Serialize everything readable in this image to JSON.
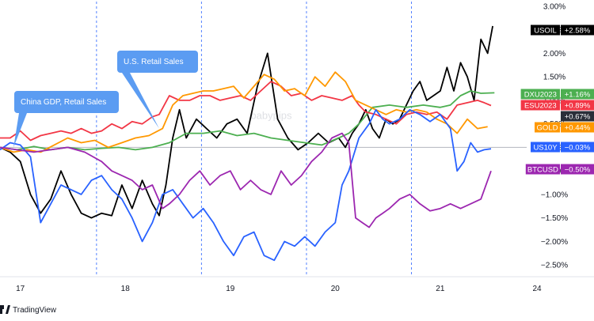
{
  "chart_data": {
    "type": "line",
    "y_axis": {
      "unit": "%",
      "range": [
        -2.75,
        3.1
      ],
      "ticks": [
        "3.00%",
        "2.50%",
        "2.00%",
        "1.50%",
        "1.00%",
        "0.50%",
        "0.00%",
        "−0.50%",
        "−1.00%",
        "−1.50%",
        "−2.00%",
        "−2.50%"
      ],
      "tick_values": [
        3.0,
        2.5,
        2.0,
        1.5,
        1.0,
        0.5,
        0.0,
        -0.5,
        -1.0,
        -1.5,
        -2.0,
        -2.5
      ]
    },
    "x_axis": {
      "range": [
        0,
        145
      ],
      "ticks": [
        {
          "label": "17",
          "x": 6
        },
        {
          "label": "18",
          "x": 37
        },
        {
          "label": "19",
          "x": 68
        },
        {
          "label": "20",
          "x": 99
        },
        {
          "label": "21",
          "x": 130
        },
        {
          "label": "24",
          "x": 161
        }
      ],
      "session_lines": [
        28.5,
        59.5,
        90.5,
        121.5
      ]
    },
    "grid": false,
    "watermark": "babypips",
    "annotations": [
      {
        "text": "China GDP, Retail Sales",
        "x": 4,
        "y": 0
      },
      {
        "text": "U.S. Retail Sales",
        "x": 47,
        "y": 0.4
      }
    ],
    "series": [
      {
        "name": "USOIL",
        "value_label": "+2.58%",
        "color": "#000000",
        "points": [
          [
            0,
            0
          ],
          [
            3,
            -0.1
          ],
          [
            6,
            -0.3
          ],
          [
            9,
            -1.0
          ],
          [
            12,
            -1.4
          ],
          [
            15,
            -1.1
          ],
          [
            18,
            -0.5
          ],
          [
            21,
            -1.0
          ],
          [
            24,
            -1.4
          ],
          [
            27,
            -1.5
          ],
          [
            30,
            -1.4
          ],
          [
            33,
            -1.45
          ],
          [
            36,
            -0.8
          ],
          [
            39,
            -1.3
          ],
          [
            42,
            -0.7
          ],
          [
            45,
            -1.2
          ],
          [
            47,
            -1.45
          ],
          [
            49,
            -0.8
          ],
          [
            51,
            0.2
          ],
          [
            53,
            0.8
          ],
          [
            55,
            0.2
          ],
          [
            58,
            0.6
          ],
          [
            61,
            0.4
          ],
          [
            64,
            0.2
          ],
          [
            67,
            0.5
          ],
          [
            70,
            0.6
          ],
          [
            73,
            0.3
          ],
          [
            76,
            1.3
          ],
          [
            79,
            2.0
          ],
          [
            82,
            0.6
          ],
          [
            85,
            0.2
          ],
          [
            88,
            -0.05
          ],
          [
            91,
            0.1
          ],
          [
            94,
            0.3
          ],
          [
            97,
            0.1
          ],
          [
            100,
            0.2
          ],
          [
            102,
            0.0
          ],
          [
            104,
            0.3
          ],
          [
            106,
            0.5
          ],
          [
            108,
            0.8
          ],
          [
            110,
            0.4
          ],
          [
            112,
            0.2
          ],
          [
            114,
            0.6
          ],
          [
            116,
            0.5
          ],
          [
            118,
            0.6
          ],
          [
            120,
            0.9
          ],
          [
            122,
            1.2
          ],
          [
            124,
            1.4
          ],
          [
            126,
            1.0
          ],
          [
            128,
            1.1
          ],
          [
            130,
            1.2
          ],
          [
            132,
            1.7
          ],
          [
            134,
            1.2
          ],
          [
            136,
            1.8
          ],
          [
            138,
            1.5
          ],
          [
            140,
            1.0
          ],
          [
            142,
            2.3
          ],
          [
            144,
            2.0
          ],
          [
            145.5,
            2.58
          ]
        ]
      },
      {
        "name": "DXU2023",
        "value_label": "+1.16%",
        "color": "#4caf50",
        "points": [
          [
            0,
            0.0
          ],
          [
            5,
            -0.05
          ],
          [
            10,
            0.02
          ],
          [
            15,
            -0.05
          ],
          [
            20,
            0.0
          ],
          [
            25,
            -0.05
          ],
          [
            30,
            -0.02
          ],
          [
            35,
            0.0
          ],
          [
            40,
            -0.05
          ],
          [
            45,
            0.0
          ],
          [
            50,
            0.1
          ],
          [
            55,
            0.3
          ],
          [
            60,
            0.3
          ],
          [
            65,
            0.35
          ],
          [
            70,
            0.25
          ],
          [
            75,
            0.3
          ],
          [
            80,
            0.2
          ],
          [
            85,
            0.15
          ],
          [
            90,
            0.1
          ],
          [
            95,
            0.05
          ],
          [
            100,
            0.2
          ],
          [
            103,
            0.3
          ],
          [
            106,
            0.5
          ],
          [
            110,
            0.85
          ],
          [
            115,
            0.9
          ],
          [
            120,
            0.85
          ],
          [
            125,
            0.9
          ],
          [
            130,
            0.85
          ],
          [
            133,
            0.9
          ],
          [
            136,
            1.1
          ],
          [
            139,
            1.2
          ],
          [
            142,
            1.15
          ],
          [
            146,
            1.16
          ]
        ]
      },
      {
        "name": "ESU2023",
        "value_label": "+0.89%",
        "color": "#f23645",
        "points": [
          [
            0,
            0.2
          ],
          [
            3,
            0.2
          ],
          [
            6,
            0.35
          ],
          [
            9,
            0.15
          ],
          [
            12,
            0.25
          ],
          [
            15,
            0.3
          ],
          [
            18,
            0.35
          ],
          [
            21,
            0.3
          ],
          [
            24,
            0.4
          ],
          [
            27,
            0.3
          ],
          [
            30,
            0.35
          ],
          [
            33,
            0.5
          ],
          [
            36,
            0.4
          ],
          [
            39,
            0.55
          ],
          [
            42,
            0.5
          ],
          [
            45,
            0.65
          ],
          [
            47,
            0.7
          ],
          [
            50,
            1.1
          ],
          [
            53,
            1.0
          ],
          [
            56,
            1.0
          ],
          [
            59,
            1.1
          ],
          [
            62,
            1.1
          ],
          [
            65,
            1.0
          ],
          [
            68,
            1.05
          ],
          [
            71,
            1.1
          ],
          [
            74,
            1.0
          ],
          [
            77,
            1.2
          ],
          [
            80,
            1.4
          ],
          [
            83,
            1.3
          ],
          [
            86,
            1.1
          ],
          [
            89,
            1.15
          ],
          [
            92,
            1.0
          ],
          [
            95,
            1.1
          ],
          [
            98,
            1.05
          ],
          [
            101,
            1.0
          ],
          [
            104,
            1.1
          ],
          [
            106,
            0.9
          ],
          [
            108,
            0.75
          ],
          [
            111,
            0.7
          ],
          [
            114,
            0.6
          ],
          [
            117,
            0.5
          ],
          [
            120,
            0.7
          ],
          [
            123,
            0.75
          ],
          [
            126,
            0.7
          ],
          [
            129,
            0.75
          ],
          [
            132,
            0.6
          ],
          [
            135,
            0.9
          ],
          [
            138,
            0.95
          ],
          [
            141,
            1.0
          ],
          [
            143,
            0.95
          ],
          [
            145,
            0.89
          ]
        ]
      },
      {
        "name": "",
        "value_label": "+0.67%",
        "color": "#2a2e39",
        "tag_only": true,
        "points": [
          [
            146,
            0.67
          ]
        ]
      },
      {
        "name": "GOLD",
        "value_label": "+0.44%",
        "color": "#ff9800",
        "points": [
          [
            0,
            0
          ],
          [
            4,
            -0.1
          ],
          [
            8,
            -0.05
          ],
          [
            12,
            -0.1
          ],
          [
            16,
            0.05
          ],
          [
            20,
            0.2
          ],
          [
            24,
            0.1
          ],
          [
            28,
            0.15
          ],
          [
            32,
            0.0
          ],
          [
            36,
            0.1
          ],
          [
            40,
            0.2
          ],
          [
            44,
            0.25
          ],
          [
            48,
            0.4
          ],
          [
            51,
            0.9
          ],
          [
            54,
            1.1
          ],
          [
            57,
            1.15
          ],
          [
            60,
            1.2
          ],
          [
            63,
            1.2
          ],
          [
            66,
            1.25
          ],
          [
            69,
            1.3
          ],
          [
            72,
            1.05
          ],
          [
            75,
            1.3
          ],
          [
            78,
            1.55
          ],
          [
            81,
            1.45
          ],
          [
            84,
            1.2
          ],
          [
            87,
            1.25
          ],
          [
            90,
            1.1
          ],
          [
            93,
            1.5
          ],
          [
            96,
            1.3
          ],
          [
            99,
            1.6
          ],
          [
            102,
            1.4
          ],
          [
            105,
            1.0
          ],
          [
            108,
            0.9
          ],
          [
            111,
            0.8
          ],
          [
            114,
            0.7
          ],
          [
            117,
            0.8
          ],
          [
            120,
            0.75
          ],
          [
            123,
            0.8
          ],
          [
            126,
            0.75
          ],
          [
            129,
            0.6
          ],
          [
            132,
            0.5
          ],
          [
            135,
            0.3
          ],
          [
            138,
            0.6
          ],
          [
            141,
            0.4
          ],
          [
            144,
            0.44
          ]
        ]
      },
      {
        "name": "US10Y",
        "value_label": "−0.03%",
        "color": "#2962ff",
        "points": [
          [
            0,
            -0.05
          ],
          [
            3,
            0.1
          ],
          [
            6,
            0.05
          ],
          [
            9,
            -0.2
          ],
          [
            12,
            -1.6
          ],
          [
            15,
            -1.2
          ],
          [
            18,
            -0.8
          ],
          [
            21,
            -0.9
          ],
          [
            24,
            -1.0
          ],
          [
            27,
            -0.7
          ],
          [
            30,
            -0.6
          ],
          [
            33,
            -0.9
          ],
          [
            36,
            -1.1
          ],
          [
            39,
            -1.5
          ],
          [
            42,
            -2.0
          ],
          [
            45,
            -1.6
          ],
          [
            48,
            -1.0
          ],
          [
            51,
            -0.9
          ],
          [
            54,
            -1.2
          ],
          [
            57,
            -1.5
          ],
          [
            60,
            -1.3
          ],
          [
            63,
            -1.6
          ],
          [
            66,
            -2.0
          ],
          [
            69,
            -2.3
          ],
          [
            72,
            -1.9
          ],
          [
            75,
            -1.8
          ],
          [
            78,
            -2.3
          ],
          [
            81,
            -2.4
          ],
          [
            84,
            -2.0
          ],
          [
            87,
            -2.1
          ],
          [
            90,
            -1.9
          ],
          [
            93,
            -2.1
          ],
          [
            96,
            -1.8
          ],
          [
            99,
            -1.6
          ],
          [
            101,
            -0.8
          ],
          [
            103,
            -0.5
          ],
          [
            106,
            0.2
          ],
          [
            109,
            0.5
          ],
          [
            111,
            0.8
          ],
          [
            113,
            0.6
          ],
          [
            115,
            0.5
          ],
          [
            118,
            0.6
          ],
          [
            121,
            0.8
          ],
          [
            124,
            0.7
          ],
          [
            127,
            0.55
          ],
          [
            130,
            0.7
          ],
          [
            133,
            0.4
          ],
          [
            135,
            -0.5
          ],
          [
            137,
            -0.3
          ],
          [
            139,
            0.1
          ],
          [
            141,
            -0.1
          ],
          [
            143,
            -0.05
          ],
          [
            145,
            -0.03
          ]
        ]
      },
      {
        "name": "BTCUSD",
        "value_label": "−0.50%",
        "color": "#9c27b0",
        "points": [
          [
            0,
            0
          ],
          [
            5,
            -0.05
          ],
          [
            10,
            -0.1
          ],
          [
            15,
            -0.05
          ],
          [
            20,
            0.0
          ],
          [
            25,
            -0.1
          ],
          [
            30,
            -0.3
          ],
          [
            33,
            -0.5
          ],
          [
            36,
            -0.6
          ],
          [
            39,
            -0.7
          ],
          [
            42,
            -0.9
          ],
          [
            45,
            -0.8
          ],
          [
            48,
            -1.3
          ],
          [
            50,
            -1.2
          ],
          [
            53,
            -1.0
          ],
          [
            56,
            -0.7
          ],
          [
            59,
            -0.5
          ],
          [
            62,
            -0.8
          ],
          [
            65,
            -0.6
          ],
          [
            68,
            -0.5
          ],
          [
            71,
            -0.9
          ],
          [
            74,
            -0.7
          ],
          [
            77,
            -0.9
          ],
          [
            80,
            -1.0
          ],
          [
            83,
            -0.5
          ],
          [
            86,
            -0.8
          ],
          [
            89,
            -0.6
          ],
          [
            92,
            -0.3
          ],
          [
            95,
            -0.1
          ],
          [
            98,
            0.2
          ],
          [
            101,
            0.3
          ],
          [
            103,
            0.1
          ],
          [
            105,
            -1.5
          ],
          [
            107,
            -1.6
          ],
          [
            109,
            -1.7
          ],
          [
            111,
            -1.5
          ],
          [
            113,
            -1.4
          ],
          [
            115,
            -1.3
          ],
          [
            118,
            -1.1
          ],
          [
            121,
            -1.0
          ],
          [
            124,
            -1.2
          ],
          [
            127,
            -1.35
          ],
          [
            130,
            -1.3
          ],
          [
            133,
            -1.2
          ],
          [
            136,
            -1.3
          ],
          [
            139,
            -1.2
          ],
          [
            142,
            -1.1
          ],
          [
            145,
            -0.5
          ]
        ]
      }
    ]
  },
  "footer": {
    "brand_text": "TradingView"
  }
}
